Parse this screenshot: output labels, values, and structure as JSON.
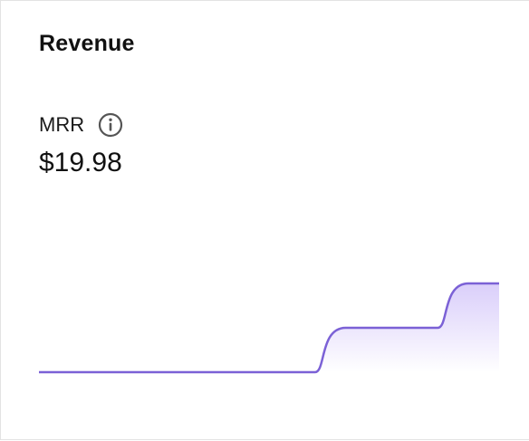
{
  "card": {
    "title": "Revenue",
    "metric": {
      "label": "MRR",
      "info_icon": "info-circle-icon",
      "value": "$19.98"
    }
  },
  "colors": {
    "line": "#7b61d6",
    "fill_top": "#d8ccfa",
    "fill_bottom": "#ffffff",
    "border": "#e3e3e3",
    "info_icon": "#555555"
  },
  "chart_data": {
    "type": "area",
    "title": "",
    "xlabel": "",
    "ylabel": "",
    "x": [
      0,
      1,
      2,
      3,
      4,
      5,
      6,
      7,
      8,
      9,
      10,
      11,
      12,
      13,
      14,
      15
    ],
    "values": [
      0,
      0,
      0,
      0,
      0,
      0,
      0,
      0,
      0,
      0,
      1,
      1,
      1,
      1,
      2,
      2
    ],
    "ylim": [
      0,
      2
    ],
    "grid": false,
    "legend": "none"
  }
}
